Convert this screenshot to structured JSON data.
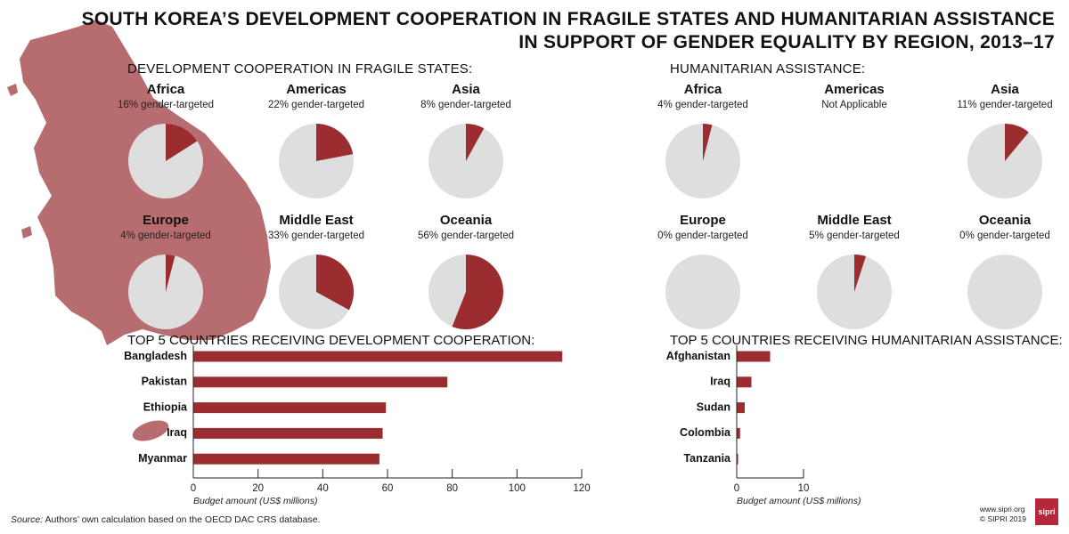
{
  "title_line1": "SOUTH KOREA’S DEVELOPMENT COOPERATION IN FRAGILE STATES AND HUMANITARIAN ASSISTANCE",
  "title_line2": "IN SUPPORT OF GENDER EQUALITY BY REGION, 2013–17",
  "colors": {
    "accent": "#9b2c30",
    "pie_base": "#dedede",
    "map": "#b76d70",
    "text": "#111111"
  },
  "dev_section_title": "DEVELOPMENT COOPERATION IN FRAGILE STATES:",
  "hum_section_title": "HUMANITARIAN ASSISTANCE:",
  "dev_pies": [
    {
      "region": "Africa",
      "label": "16% gender-targeted",
      "percent": 16
    },
    {
      "region": "Americas",
      "label": "22% gender-targeted",
      "percent": 22
    },
    {
      "region": "Asia",
      "label": "8% gender-targeted",
      "percent": 8
    },
    {
      "region": "Europe",
      "label": "4% gender-targeted",
      "percent": 4
    },
    {
      "region": "Middle East",
      "label": "33% gender-targeted",
      "percent": 33
    },
    {
      "region": "Oceania",
      "label": "56% gender-targeted",
      "percent": 56
    }
  ],
  "hum_pies": [
    {
      "region": "Africa",
      "label": "4% gender-targeted",
      "percent": 4
    },
    {
      "region": "Americas",
      "label": "Not Applicable",
      "percent": 0
    },
    {
      "region": "Asia",
      "label": "11% gender-targeted",
      "percent": 11
    },
    {
      "region": "Europe",
      "label": "0% gender-targeted",
      "percent": 0
    },
    {
      "region": "Middle East",
      "label": "5% gender-targeted",
      "percent": 5
    },
    {
      "region": "Oceania",
      "label": "0% gender-targeted",
      "percent": 0
    }
  ],
  "chart_data": [
    {
      "type": "bar",
      "orientation": "horizontal",
      "title": "TOP 5 COUNTRIES RECEIVING DEVELOPMENT COOPERATION:",
      "categories": [
        "Bangladesh",
        "Pakistan",
        "Ethiopia",
        "Iraq",
        "Myanmar"
      ],
      "values": [
        114,
        78.5,
        59.5,
        58.5,
        57.5
      ],
      "xlabel": "Budget amount (US$ millions)",
      "xlim": [
        0,
        120
      ],
      "xticks": [
        0,
        20,
        40,
        60,
        80,
        100,
        120
      ]
    },
    {
      "type": "bar",
      "orientation": "horizontal",
      "title": "TOP 5 COUNTRIES RECEIVING HUMANITARIAN ASSISTANCE:",
      "categories": [
        "Afghanistan",
        "Iraq",
        "Sudan",
        "Colombia",
        "Tanzania"
      ],
      "values": [
        5,
        2.2,
        1.2,
        0.5,
        0.2
      ],
      "xlabel": "Budget amount (US$ millions)",
      "xlim": [
        0,
        10
      ],
      "xticks": [
        0,
        10
      ]
    }
  ],
  "source_label": "Source:",
  "source_text": " Authors’ own calculation based on the OECD DAC CRS database.",
  "website": "www.sipri.org",
  "copyright": "© SIPRI 2019",
  "logo_text": "sipri"
}
